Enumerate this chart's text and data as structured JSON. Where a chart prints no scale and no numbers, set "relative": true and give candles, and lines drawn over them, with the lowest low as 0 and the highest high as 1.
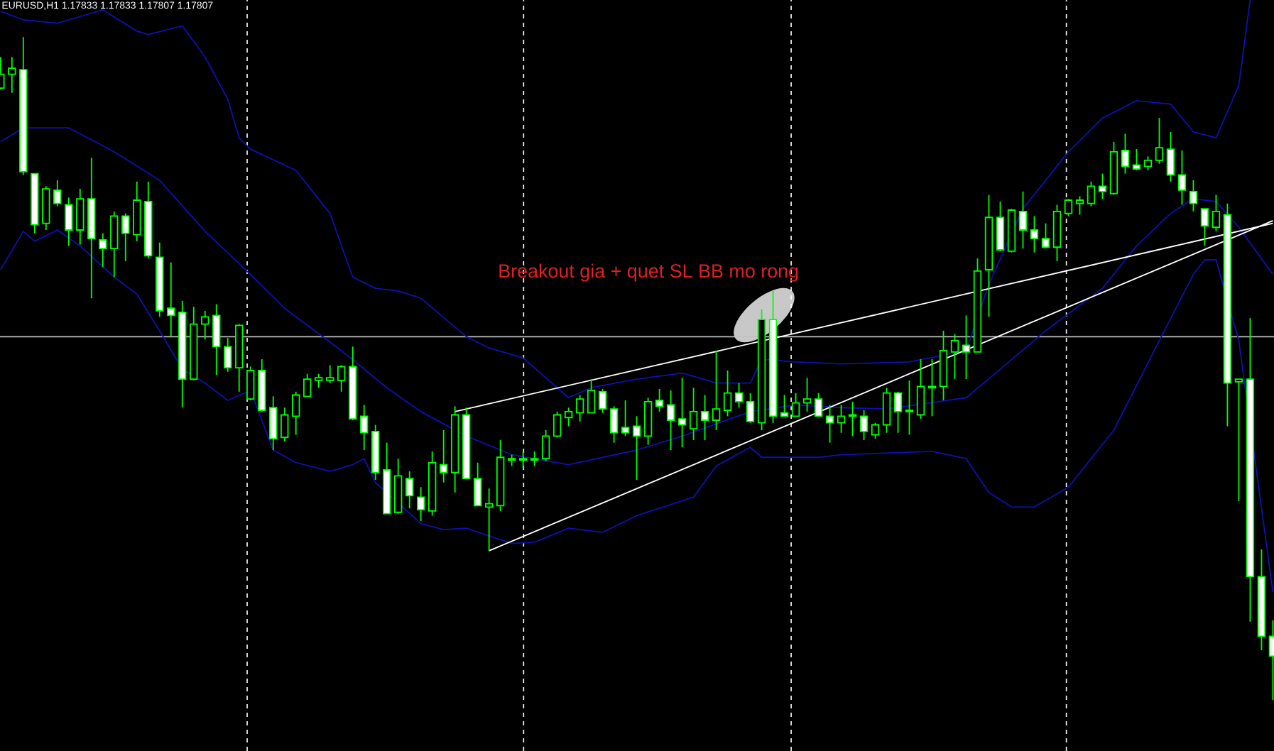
{
  "chart_data": {
    "type": "candlestick",
    "title": "EURUSD,H1 1.17833 1.17833 1.17807 1.17807",
    "relative": true,
    "color": "#00ff00",
    "categories": [
      null,
      null,
      null,
      null,
      null,
      null,
      null,
      null,
      null,
      null,
      null,
      null,
      null,
      null,
      null,
      null,
      null,
      null,
      null,
      null,
      null,
      null,
      null,
      null,
      null,
      null,
      null,
      null,
      null,
      null,
      null,
      null,
      null,
      null,
      null,
      null,
      null,
      null,
      null,
      null,
      null,
      null,
      null,
      null,
      null,
      null,
      null,
      null,
      null,
      null,
      null,
      null,
      null,
      null,
      null,
      null,
      null,
      null,
      null,
      null,
      null,
      null,
      null,
      null,
      null,
      null,
      null,
      null,
      null,
      null,
      null,
      null,
      null,
      null,
      null,
      null,
      null,
      null,
      null,
      null,
      null,
      null,
      null,
      null,
      null,
      null,
      null,
      null,
      null,
      null,
      null,
      null,
      null,
      null,
      null,
      null,
      null,
      null,
      null,
      null,
      null,
      null,
      null,
      null,
      null,
      null,
      null,
      null,
      null,
      null,
      null,
      null,
      null
    ],
    "ohlc": [
      [
        0.923,
        0.97,
        0.921,
        0.944
      ],
      [
        0.944,
        0.97,
        0.916,
        0.953
      ],
      [
        0.951,
        1,
        0.792,
        0.797
      ],
      [
        0.794,
        0.794,
        0.704,
        0.717
      ],
      [
        0.719,
        0.775,
        0.709,
        0.771
      ],
      [
        0.769,
        0.784,
        0.745,
        0.749
      ],
      [
        0.747,
        0.758,
        0.685,
        0.709
      ],
      [
        0.709,
        0.771,
        0.687,
        0.756
      ],
      [
        0.756,
        0.818,
        0.606,
        0.696
      ],
      [
        0.694,
        0.704,
        0.653,
        0.681
      ],
      [
        0.681,
        0.737,
        0.638,
        0.73
      ],
      [
        0.73,
        0.734,
        0.662,
        0.704
      ],
      [
        0.702,
        0.782,
        0.692,
        0.754
      ],
      [
        0.752,
        0.782,
        0.666,
        0.67
      ],
      [
        0.668,
        0.69,
        0.578,
        0.587
      ],
      [
        0.591,
        0.66,
        0.548,
        0.58
      ],
      [
        0.585,
        0.602,
        0.441,
        0.484
      ],
      [
        0.484,
        0.593,
        0.482,
        0.567
      ],
      [
        0.567,
        0.587,
        0.544,
        0.578
      ],
      [
        0.58,
        0.597,
        0.49,
        0.533
      ],
      [
        0.533,
        0.546,
        0.495,
        0.501
      ],
      [
        0.501,
        0.567,
        0.465,
        0.565
      ],
      [
        0.454,
        0.503,
        0.452,
        0.497
      ],
      [
        0.497,
        0.514,
        0.435,
        0.437
      ],
      [
        0.441,
        0.458,
        0.377,
        0.394
      ],
      [
        0.396,
        0.441,
        0.39,
        0.43
      ],
      [
        0.428,
        0.465,
        0.4,
        0.46
      ],
      [
        0.458,
        0.492,
        0.458,
        0.484
      ],
      [
        0.482,
        0.492,
        0.471,
        0.486
      ],
      [
        0.482,
        0.505,
        0.478,
        0.486
      ],
      [
        0.482,
        0.505,
        0.465,
        0.503
      ],
      [
        0.503,
        0.533,
        0.422,
        0.424
      ],
      [
        0.428,
        0.445,
        0.377,
        0.403
      ],
      [
        0.405,
        0.415,
        0.332,
        0.343
      ],
      [
        0.347,
        0.388,
        0.281,
        0.281
      ],
      [
        0.283,
        0.364,
        0.281,
        0.338
      ],
      [
        0.334,
        0.345,
        0.289,
        0.308
      ],
      [
        0.306,
        0.321,
        0.27,
        0.287
      ],
      [
        0.285,
        0.375,
        0.278,
        0.358
      ],
      [
        0.355,
        0.407,
        0.328,
        0.343
      ],
      [
        0.343,
        0.443,
        0.313,
        0.43
      ],
      [
        0.43,
        0.441,
        0.334,
        0.334
      ],
      [
        0.334,
        0.358,
        0.293,
        0.293
      ],
      [
        0.291,
        0.319,
        0.225,
        0.296
      ],
      [
        0.293,
        0.392,
        0.285,
        0.366
      ],
      [
        0.362,
        0.37,
        0.353,
        0.364
      ],
      [
        0.362,
        0.375,
        0.349,
        0.364
      ],
      [
        0.362,
        0.375,
        0.353,
        0.364
      ],
      [
        0.364,
        0.407,
        0.36,
        0.398
      ],
      [
        0.398,
        0.435,
        0.396,
        0.43
      ],
      [
        0.426,
        0.441,
        0.413,
        0.435
      ],
      [
        0.433,
        0.46,
        0.42,
        0.454
      ],
      [
        0.433,
        0.484,
        0.433,
        0.467
      ],
      [
        0.465,
        0.469,
        0.433,
        0.439
      ],
      [
        0.439,
        0.443,
        0.388,
        0.403
      ],
      [
        0.411,
        0.452,
        0.398,
        0.403
      ],
      [
        0.413,
        0.428,
        0.332,
        0.398
      ],
      [
        0.398,
        0.456,
        0.385,
        0.45
      ],
      [
        0.452,
        0.469,
        0.435,
        0.443
      ],
      [
        0.445,
        0.467,
        0.377,
        0.422
      ],
      [
        0.424,
        0.486,
        0.381,
        0.415
      ],
      [
        0.409,
        0.471,
        0.392,
        0.435
      ],
      [
        0.435,
        0.46,
        0.392,
        0.422
      ],
      [
        0.422,
        0.527,
        0.407,
        0.439
      ],
      [
        0.437,
        0.497,
        0.428,
        0.463
      ],
      [
        0.463,
        0.478,
        0.441,
        0.45
      ],
      [
        0.45,
        0.463,
        0.418,
        0.42
      ],
      [
        0.418,
        0.589,
        0.407,
        0.574
      ],
      [
        0.574,
        0.617,
        0.418,
        0.428
      ],
      [
        0.433,
        0.46,
        0.428,
        0.428
      ],
      [
        0.428,
        0.463,
        0.428,
        0.448
      ],
      [
        0.448,
        0.486,
        0.435,
        0.454
      ],
      [
        0.454,
        0.463,
        0.428,
        0.428
      ],
      [
        0.428,
        0.445,
        0.388,
        0.418
      ],
      [
        0.418,
        0.445,
        0.403,
        0.428
      ],
      [
        0.428,
        0.45,
        0.398,
        0.43
      ],
      [
        0.428,
        0.437,
        0.392,
        0.405
      ],
      [
        0.4,
        0.418,
        0.394,
        0.415
      ],
      [
        0.415,
        0.471,
        0.403,
        0.463
      ],
      [
        0.463,
        0.465,
        0.403,
        0.435
      ],
      [
        0.435,
        0.482,
        0.4,
        0.437
      ],
      [
        0.43,
        0.514,
        0.424,
        0.473
      ],
      [
        0.471,
        0.514,
        0.428,
        0.473
      ],
      [
        0.473,
        0.557,
        0.452,
        0.527
      ],
      [
        0.525,
        0.552,
        0.484,
        0.542
      ],
      [
        0.535,
        0.58,
        0.484,
        0.525
      ],
      [
        0.525,
        0.666,
        0.525,
        0.647
      ],
      [
        0.649,
        0.762,
        0.578,
        0.728
      ],
      [
        0.728,
        0.752,
        0.677,
        0.679
      ],
      [
        0.677,
        0.741,
        0.675,
        0.739
      ],
      [
        0.737,
        0.767,
        0.681,
        0.709
      ],
      [
        0.709,
        0.73,
        0.675,
        0.696
      ],
      [
        0.696,
        0.719,
        0.681,
        0.683
      ],
      [
        0.683,
        0.747,
        0.662,
        0.737
      ],
      [
        0.734,
        0.756,
        0.73,
        0.754
      ],
      [
        0.749,
        0.76,
        0.732,
        0.754
      ],
      [
        0.749,
        0.782,
        0.745,
        0.775
      ],
      [
        0.775,
        0.794,
        0.756,
        0.767
      ],
      [
        0.764,
        0.842,
        0.762,
        0.827
      ],
      [
        0.829,
        0.854,
        0.794,
        0.805
      ],
      [
        0.807,
        0.831,
        0.799,
        0.801
      ],
      [
        0.805,
        0.82,
        0.799,
        0.814
      ],
      [
        0.814,
        0.878,
        0.809,
        0.833
      ],
      [
        0.831,
        0.857,
        0.782,
        0.792
      ],
      [
        0.792,
        0.829,
        0.747,
        0.769
      ],
      [
        0.767,
        0.784,
        0.737,
        0.749
      ],
      [
        0.741,
        0.741,
        0.685,
        0.715
      ],
      [
        0.713,
        0.762,
        0.707,
        0.737
      ],
      [
        0.732,
        0.749,
        0.413,
        0.478
      ],
      [
        0.48,
        0.484,
        0.3,
        0.484
      ],
      [
        0.484,
        0.576,
        0.118,
        0.186
      ],
      [
        0.186,
        0.227,
        0.075,
        0.096
      ],
      [
        0.096,
        0.12,
        0,
        0.066
      ]
    ],
    "series": [
      {
        "type": "line",
        "color": "#1010b0",
        "values": [
          1.039,
          null,
          1.026,
          null,
          null,
          1.021,
          null,
          null,
          null,
          1.041,
          null,
          null,
          1.009,
          1.004,
          null,
          null,
          1.017,
          null,
          0.97,
          null,
          0.906,
          0.848,
          0.831,
          null,
          null,
          null,
          0.799,
          null,
          null,
          0.734,
          null,
          0.638,
          null,
          0.621,
          null,
          0.617,
          null,
          0.606,
          null,
          null,
          null,
          0.548,
          null,
          0.531,
          null,
          null,
          0.516,
          null,
          null,
          null,
          0.456,
          null,
          0.471,
          null,
          null,
          null,
          0.484,
          null,
          null,
          null,
          0.493,
          null,
          null,
          0.478,
          null,
          null,
          0.478,
          0.514,
          null,
          null,
          0.51,
          null,
          null,
          null,
          0.507,
          null,
          null,
          null,
          null,
          null,
          0.51,
          null,
          null,
          null,
          null,
          0.527,
          null,
          0.627,
          null,
          null,
          0.741,
          null,
          null,
          null,
          0.827,
          null,
          null,
          0.878,
          null,
          null,
          0.904,
          null,
          null,
          0.899,
          null,
          0.857,
          null,
          0.848,
          null,
          0.927,
          1.056,
          null,
          null
        ]
      },
      {
        "type": "line",
        "color": "#1010b0",
        "values": [
          0.842,
          null,
          0.863,
          null,
          null,
          null,
          0.863,
          null,
          null,
          null,
          0.827,
          null,
          null,
          null,
          0.784,
          null,
          null,
          null,
          0.707,
          null,
          null,
          null,
          0.642,
          null,
          null,
          0.591,
          null,
          null,
          null,
          null,
          0.527,
          null,
          null,
          null,
          0.471,
          null,
          null,
          0.435,
          null,
          null,
          null,
          0.398,
          null,
          null,
          null,
          0.37,
          null,
          null,
          null,
          null,
          0.355,
          null,
          null,
          null,
          null,
          null,
          0.377,
          null,
          null,
          null,
          0.398,
          null,
          null,
          null,
          null,
          null,
          0.435,
          null,
          null,
          null,
          0.445,
          null,
          null,
          null,
          0.441,
          null,
          null,
          null,
          0.439,
          null,
          null,
          null,
          null,
          null,
          null,
          0.456,
          null,
          null,
          0.499,
          null,
          null,
          null,
          0.557,
          null,
          null,
          null,
          null,
          0.621,
          null,
          null,
          0.685,
          null,
          null,
          0.734,
          null,
          0.756,
          null,
          0.752,
          null,
          0.713,
          null,
          null,
          0.642
        ]
      },
      {
        "type": "line",
        "color": "#1010b0",
        "values": [
          0.649,
          null,
          0.707,
          0.692,
          null,
          0.709,
          null,
          0.685,
          null,
          null,
          0.638,
          null,
          0.612,
          null,
          0.557,
          null,
          0.499,
          null,
          0.478,
          null,
          0.452,
          null,
          0.467,
          null,
          0.377,
          null,
          0.358,
          null,
          null,
          0.345,
          null,
          0.355,
          0.364,
          0.328,
          null,
          null,
          null,
          0.266,
          null,
          0.257,
          null,
          0.259,
          null,
          null,
          null,
          0.236,
          null,
          0.238,
          null,
          null,
          0.259,
          null,
          null,
          0.253,
          null,
          null,
          0.278,
          null,
          null,
          null,
          null,
          0.306,
          null,
          0.353,
          null,
          null,
          0.381,
          0.366,
          null,
          null,
          null,
          null,
          0.366,
          null,
          0.37,
          null,
          null,
          null,
          null,
          null,
          null,
          null,
          0.375,
          null,
          null,
          0.364,
          null,
          0.313,
          null,
          0.291,
          null,
          0.291,
          null,
          null,
          0.321,
          null,
          null,
          null,
          0.407,
          null,
          null,
          null,
          0.542,
          null,
          null,
          0.642,
          0.664,
          0.664,
          null,
          0.542,
          null,
          null,
          0.163
        ]
      },
      {
        "type": "line",
        "color": "#ffffff",
        "values": [
          null,
          null,
          null,
          null,
          null,
          null,
          null,
          null,
          null,
          null,
          null,
          null,
          null,
          null,
          null,
          null,
          null,
          null,
          null,
          null,
          null,
          null,
          null,
          null,
          null,
          null,
          null,
          null,
          null,
          null,
          null,
          null,
          null,
          null,
          null,
          null,
          null,
          null,
          null,
          null,
          0.435,
          null,
          null,
          null,
          null,
          null,
          null,
          null,
          null,
          null,
          null,
          null,
          null,
          null,
          null,
          null,
          null,
          null,
          null,
          null,
          null,
          null,
          null,
          null,
          null,
          null,
          null,
          null,
          null,
          null,
          null,
          null,
          null,
          null,
          null,
          null,
          null,
          null,
          null,
          null,
          null,
          null,
          null,
          null,
          null,
          null,
          null,
          null,
          null,
          null,
          null,
          null,
          null,
          null,
          null,
          null,
          null,
          null,
          null,
          null,
          null,
          null,
          null,
          null,
          null,
          null,
          null,
          null,
          null,
          null,
          null,
          null,
          0.719
        ]
      },
      {
        "type": "line",
        "color": "#ffffff",
        "values": [
          null,
          null,
          null,
          null,
          null,
          null,
          null,
          null,
          null,
          null,
          null,
          null,
          null,
          null,
          null,
          null,
          null,
          null,
          null,
          null,
          null,
          null,
          null,
          null,
          null,
          null,
          null,
          null,
          null,
          null,
          null,
          null,
          null,
          null,
          null,
          null,
          null,
          null,
          null,
          null,
          null,
          null,
          null,
          0.225,
          null,
          null,
          null,
          null,
          null,
          null,
          null,
          null,
          null,
          null,
          null,
          null,
          null,
          null,
          null,
          null,
          null,
          null,
          null,
          null,
          null,
          null,
          null,
          null,
          null,
          null,
          null,
          null,
          null,
          null,
          null,
          null,
          null,
          null,
          null,
          null,
          null,
          null,
          null,
          null,
          null,
          null,
          null,
          null,
          null,
          null,
          null,
          null,
          null,
          null,
          null,
          null,
          null,
          null,
          null,
          null,
          null,
          null,
          null,
          null,
          null,
          null,
          null,
          null,
          null,
          null,
          null,
          null,
          0.723
        ]
      }
    ],
    "ref_lines": [
      {
        "axis": "y",
        "value": 0.548,
        "color": "#c0c0c0"
      }
    ],
    "annotations": [
      "Breakout gia + quet SL BB mo rong"
    ]
  }
}
